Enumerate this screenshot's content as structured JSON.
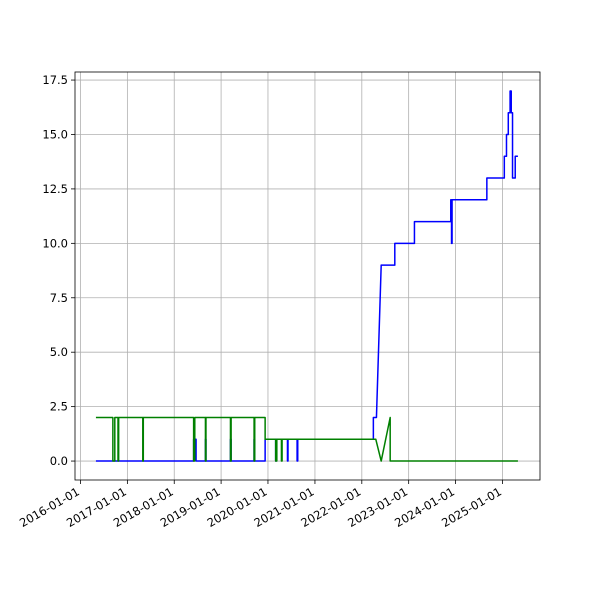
{
  "chart_data": {
    "type": "line",
    "xlim": [
      "2015-11-20",
      "2025-10-20"
    ],
    "xticks": [
      "2016-01-01",
      "2017-01-01",
      "2018-01-01",
      "2019-01-01",
      "2020-01-01",
      "2021-01-01",
      "2022-01-01",
      "2023-01-01",
      "2024-01-01",
      "2025-01-01"
    ],
    "ylim": [
      -0.87,
      17.87
    ],
    "yticks": [
      {
        "value": 0,
        "label": "0.0"
      },
      {
        "value": 2.5,
        "label": "2.5"
      },
      {
        "value": 5,
        "label": "5.0"
      },
      {
        "value": 7.5,
        "label": "7.5"
      },
      {
        "value": 10,
        "label": "10.0"
      },
      {
        "value": 12.5,
        "label": "12.5"
      },
      {
        "value": 15,
        "label": "15.0"
      },
      {
        "value": 17.5,
        "label": "17.5"
      }
    ],
    "grid": true,
    "series": [
      {
        "color": "#0000ff",
        "x": [
          "2016-05-01",
          "2018-06-01",
          "2018-06-01",
          "2018-06-20",
          "2018-06-20",
          "2018-09-01",
          "2018-09-01",
          "2018-09-05",
          "2018-09-05",
          "2019-03-15",
          "2019-03-15",
          "2019-03-20",
          "2019-03-20",
          "2019-09-15",
          "2019-09-15",
          "2019-09-20",
          "2019-09-20",
          "2019-12-10",
          "2019-12-10",
          "2020-03-01",
          "2020-03-01",
          "2020-03-05",
          "2020-03-05",
          "2020-06-01",
          "2020-06-01",
          "2020-06-05",
          "2020-06-05",
          "2020-08-15",
          "2020-08-15",
          "2020-08-20",
          "2020-08-20",
          "2022-04-01",
          "2022-04-01",
          "2022-04-25",
          "2022-06-01",
          "2022-09-15",
          "2022-09-15",
          "2023-02-15",
          "2023-02-15",
          "2023-11-25",
          "2023-11-25",
          "2023-12-01",
          "2023-12-01",
          "2023-12-05",
          "2023-12-05",
          "2024-09-01",
          "2024-09-01",
          "2025-01-15",
          "2025-01-15",
          "2025-02-01",
          "2025-02-01",
          "2025-02-15",
          "2025-02-15",
          "2025-03-01",
          "2025-03-01",
          "2025-03-10",
          "2025-03-10",
          "2025-03-20",
          "2025-03-20",
          "2025-04-10",
          "2025-04-10",
          "2025-05-01"
        ],
        "values": [
          0,
          0,
          1,
          1,
          0,
          0,
          1,
          1,
          0,
          0,
          1,
          1,
          0,
          0,
          1,
          1,
          0,
          0,
          1,
          1,
          0,
          0,
          1,
          1,
          0,
          0,
          1,
          1,
          0,
          0,
          1,
          1,
          2,
          2,
          9,
          9,
          10,
          10,
          11,
          11,
          12,
          12,
          10,
          10,
          12,
          12,
          13,
          13,
          14,
          14,
          15,
          15,
          16,
          16,
          17,
          17,
          16,
          16,
          13,
          13,
          14,
          14
        ]
      },
      {
        "color": "#008000",
        "x": [
          "2016-05-01",
          "2016-09-10",
          "2016-09-10",
          "2016-09-25",
          "2016-09-25",
          "2016-10-20",
          "2016-10-20",
          "2016-10-25",
          "2016-10-25",
          "2017-05-01",
          "2017-05-01",
          "2017-05-05",
          "2017-05-05",
          "2018-06-01",
          "2018-06-01",
          "2018-06-10",
          "2018-06-10",
          "2018-09-01",
          "2018-09-01",
          "2018-09-05",
          "2018-09-05",
          "2019-03-15",
          "2019-03-15",
          "2019-03-20",
          "2019-03-20",
          "2019-09-15",
          "2019-09-15",
          "2019-09-20",
          "2019-09-20",
          "2019-12-10",
          "2019-12-10",
          "2020-03-01",
          "2020-03-01",
          "2020-03-10",
          "2020-03-10",
          "2020-04-15",
          "2020-04-15",
          "2020-04-20",
          "2020-04-20",
          "2022-04-20",
          "2022-06-01",
          "2022-08-10",
          "2022-08-10",
          "2025-05-01"
        ],
        "values": [
          2,
          2,
          0,
          0,
          2,
          2,
          0,
          0,
          2,
          2,
          0,
          0,
          2,
          2,
          0,
          0,
          2,
          2,
          0,
          0,
          2,
          2,
          0,
          0,
          2,
          2,
          0,
          0,
          2,
          2,
          1,
          1,
          0,
          0,
          1,
          1,
          0,
          0,
          1,
          1,
          0,
          2,
          0,
          0
        ]
      }
    ]
  }
}
